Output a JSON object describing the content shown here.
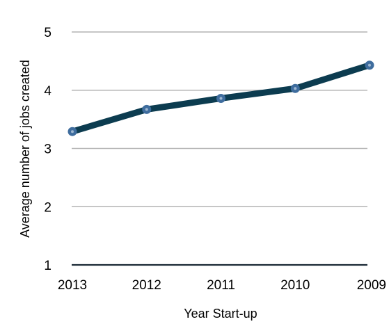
{
  "chart_data": {
    "type": "line",
    "title": "",
    "xlabel": "Year Start-up",
    "ylabel": "Average number of jobs created",
    "categories": [
      "2013",
      "2012",
      "2011",
      "2010",
      "2009"
    ],
    "series": [
      {
        "values": [
          3.29,
          3.67,
          3.86,
          4.03,
          4.43
        ]
      }
    ],
    "ylim": [
      1,
      5
    ],
    "yticks": [
      "1",
      "2",
      "3",
      "4",
      "5"
    ],
    "grid": true,
    "legend": "none"
  },
  "colors": {
    "line": "#0c3c50",
    "marker": "#3f6d9e",
    "marker_center": "#9fb8d2",
    "grid": "#b3b3b3",
    "baseline": "#1b2a35"
  }
}
